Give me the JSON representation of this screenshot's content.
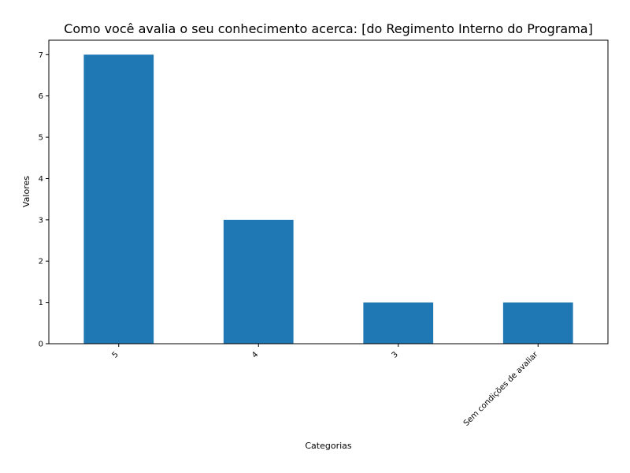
{
  "chart_data": {
    "type": "bar",
    "title": "Como você avalia o seu conhecimento acerca: [do Regimento Interno do Programa]",
    "xlabel": "Categorias",
    "ylabel": "Valores",
    "categories": [
      "5",
      "4",
      "3",
      "Sem condições de avaliar"
    ],
    "values": [
      7,
      3,
      1,
      1
    ],
    "ylim": [
      0,
      7.35
    ],
    "yticks": [
      "0",
      "1",
      "2",
      "3",
      "4",
      "5",
      "6",
      "7"
    ],
    "grid": false,
    "legend": "none",
    "bar_color": "#1f77b4"
  }
}
